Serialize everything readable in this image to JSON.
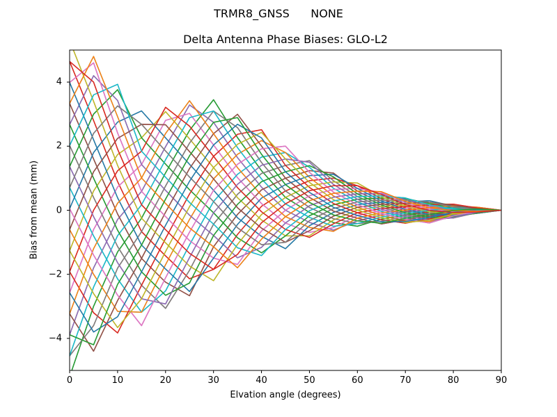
{
  "figure": {
    "suptitle": "TRMR8_GNSS      NONE",
    "title": "Delta Antenna Phase Biases: GLO-L2",
    "xlabel": "Elvation angle (degrees)",
    "ylabel": "Bias from mean (mm)"
  },
  "chart_data": {
    "type": "line",
    "title": "Delta Antenna Phase Biases: GLO-L2",
    "suptitle": "TRMR8_GNSS      NONE",
    "xlabel": "Elvation angle (degrees)",
    "ylabel": "Bias from mean (mm)",
    "xlim": [
      0,
      90
    ],
    "ylim": [
      -5,
      5
    ],
    "xticks": [
      0,
      10,
      20,
      30,
      40,
      50,
      60,
      70,
      80,
      90
    ],
    "yticks": [
      -4,
      -2,
      0,
      2,
      4
    ],
    "ytick_labels": [
      "−4",
      "−2",
      "0",
      "2",
      "4"
    ],
    "grid": false,
    "legend": null,
    "x": [
      0,
      5,
      10,
      15,
      20,
      25,
      30,
      35,
      40,
      45,
      50,
      55,
      60,
      65,
      70,
      75,
      80,
      85,
      90
    ],
    "upper_envelope": [
      5.3,
      5.0,
      4.1,
      3.1,
      3.35,
      3.55,
      3.45,
      3.1,
      2.6,
      2.0,
      1.6,
      1.2,
      0.85,
      0.6,
      0.4,
      0.3,
      0.2,
      0.1,
      0.0
    ],
    "lower_envelope": [
      -5.2,
      -4.6,
      -4.0,
      -3.6,
      -3.2,
      -2.8,
      -2.2,
      -1.9,
      -1.5,
      -1.2,
      -0.9,
      -0.7,
      -0.5,
      -0.45,
      -0.42,
      -0.4,
      -0.25,
      -0.1,
      0.0
    ],
    "series_count": 64,
    "series_phase_step": 0.0625,
    "triangle_period_deg": 60,
    "color_cycle": [
      "#1f77b4",
      "#ff7f0e",
      "#2ca02c",
      "#d62728",
      "#9467bd",
      "#8c564b",
      "#e377c2",
      "#7f7f7f",
      "#bcbd22",
      "#17becf"
    ],
    "note": "64 curves sampled every 5 deg; each is a blend of upper/lower envelopes with a per-curve phase, converging to 0 at 90 deg"
  }
}
